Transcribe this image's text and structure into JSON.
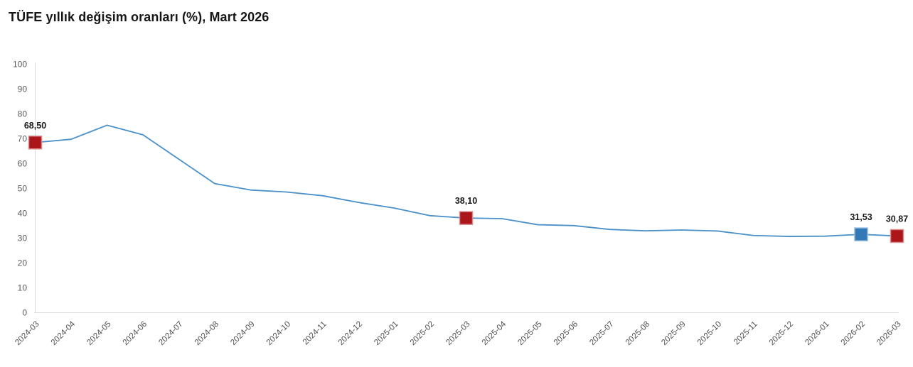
{
  "title": "TÜFE yıllık değişim oranları (%), Mart 2026",
  "colors": {
    "line": "#4a90c9",
    "marker_red_fill": "#ab161b",
    "marker_red_border": "#d8898c",
    "marker_blue_fill": "#3379b6",
    "marker_blue_border": "#8db9e0",
    "axis_line": "#d8dce1",
    "tick_text": "#595959",
    "annotation_text": "#1a1a1a",
    "title_text": "#161616"
  },
  "chart_data": {
    "type": "line",
    "title": "TÜFE yıllık değişim oranları (%), Mart 2026",
    "xlabel": "",
    "ylabel": "",
    "ylim": [
      0,
      100
    ],
    "y_ticks": [
      0,
      10,
      20,
      30,
      40,
      50,
      60,
      70,
      80,
      90,
      100
    ],
    "grid": false,
    "legend": "none",
    "categories": [
      "2024-03",
      "2024-04",
      "2024-05",
      "2024-06",
      "2024-07",
      "2024-08",
      "2024-09",
      "2024-10",
      "2024-11",
      "2024-12",
      "2025-01",
      "2025-02",
      "2025-03",
      "2025-04",
      "2025-05",
      "2025-06",
      "2025-07",
      "2025-08",
      "2025-09",
      "2025-10",
      "2025-11",
      "2025-12",
      "2026-01",
      "2026-02",
      "2026-03"
    ],
    "series": [
      {
        "name": "TÜFE yıllık değişim oranı (%)",
        "values": [
          68.5,
          69.8,
          75.45,
          71.6,
          61.78,
          51.97,
          49.38,
          48.58,
          47.09,
          44.38,
          42.12,
          39.05,
          38.1,
          37.86,
          35.41,
          35.05,
          33.52,
          32.95,
          33.29,
          32.87,
          31.07,
          30.7,
          30.8,
          31.53,
          30.87
        ]
      }
    ],
    "annotations": [
      {
        "category": "2024-03",
        "value": 68.5,
        "label": "68,50",
        "marker": "red-square"
      },
      {
        "category": "2025-03",
        "value": 38.1,
        "label": "38,10",
        "marker": "red-square"
      },
      {
        "category": "2026-02",
        "value": 31.53,
        "label": "31,53",
        "marker": "blue-square"
      },
      {
        "category": "2026-03",
        "value": 30.87,
        "label": "30,87",
        "marker": "red-square"
      }
    ]
  }
}
